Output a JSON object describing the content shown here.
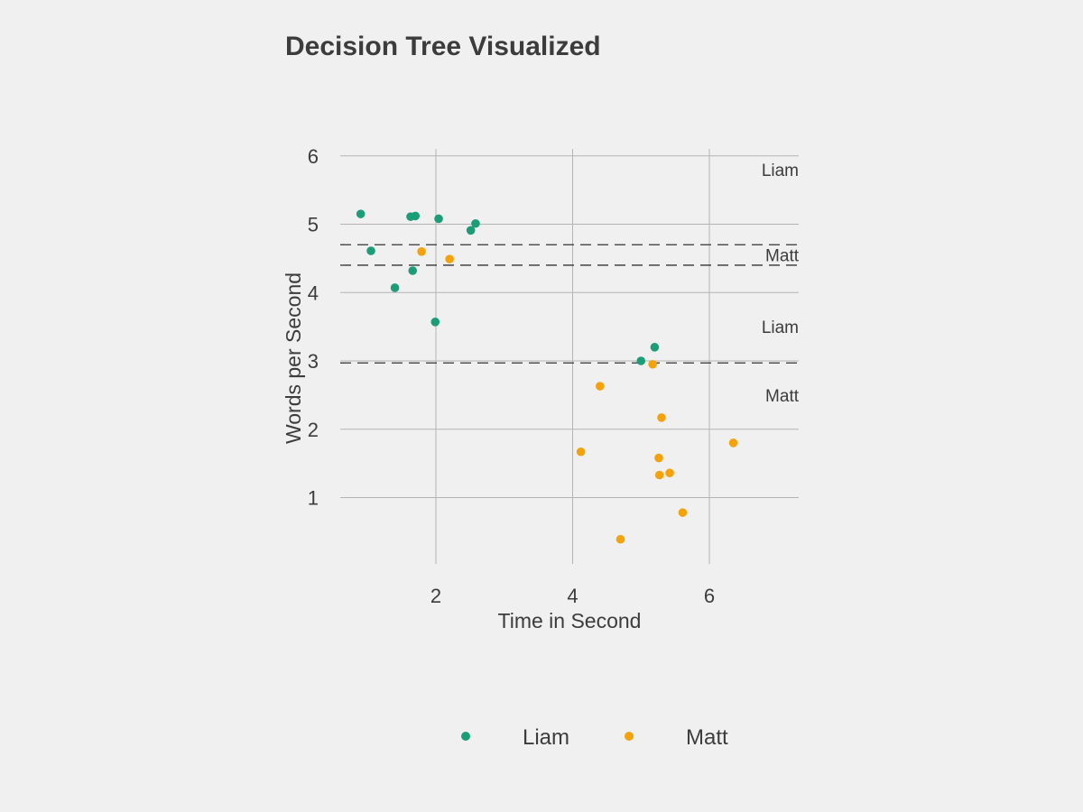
{
  "chart_data": {
    "type": "scatter",
    "title": "Decision Tree Visualized",
    "xlabel": "Time in Second",
    "ylabel": "Words per Second",
    "xlim": [
      0.6,
      7.3
    ],
    "ylim": [
      0,
      6.1
    ],
    "xticks": [
      2,
      4,
      6
    ],
    "yticks": [
      1,
      2,
      3,
      4,
      5,
      6
    ],
    "grid": true,
    "legend_position": "bottom",
    "colors": {
      "Liam": "#1b9e77",
      "Matt": "#f5a20a"
    },
    "series": [
      {
        "name": "Liam",
        "points": [
          {
            "x": 0.9,
            "y": 5.15
          },
          {
            "x": 1.05,
            "y": 4.61
          },
          {
            "x": 1.4,
            "y": 4.07
          },
          {
            "x": 1.63,
            "y": 5.11
          },
          {
            "x": 1.7,
            "y": 5.12
          },
          {
            "x": 1.66,
            "y": 4.32
          },
          {
            "x": 1.99,
            "y": 3.57
          },
          {
            "x": 2.04,
            "y": 5.08
          },
          {
            "x": 2.51,
            "y": 4.91
          },
          {
            "x": 2.58,
            "y": 5.01
          },
          {
            "x": 5.0,
            "y": 3.0
          },
          {
            "x": 5.2,
            "y": 3.2
          }
        ]
      },
      {
        "name": "Matt",
        "points": [
          {
            "x": 1.79,
            "y": 4.6
          },
          {
            "x": 2.2,
            "y": 4.49
          },
          {
            "x": 4.12,
            "y": 1.67
          },
          {
            "x": 4.4,
            "y": 2.63
          },
          {
            "x": 4.7,
            "y": 0.39
          },
          {
            "x": 5.17,
            "y": 2.95
          },
          {
            "x": 5.26,
            "y": 1.58
          },
          {
            "x": 5.27,
            "y": 1.33
          },
          {
            "x": 5.3,
            "y": 2.17
          },
          {
            "x": 5.42,
            "y": 1.36
          },
          {
            "x": 5.61,
            "y": 0.78
          },
          {
            "x": 6.35,
            "y": 1.8
          }
        ]
      }
    ],
    "split_lines_y": [
      4.7,
      4.4,
      2.97
    ],
    "region_labels": [
      {
        "text": "Liam",
        "y": 5.8
      },
      {
        "text": "Matt",
        "y": 4.55
      },
      {
        "text": "Liam",
        "y": 3.5
      },
      {
        "text": "Matt",
        "y": 2.5
      }
    ]
  }
}
